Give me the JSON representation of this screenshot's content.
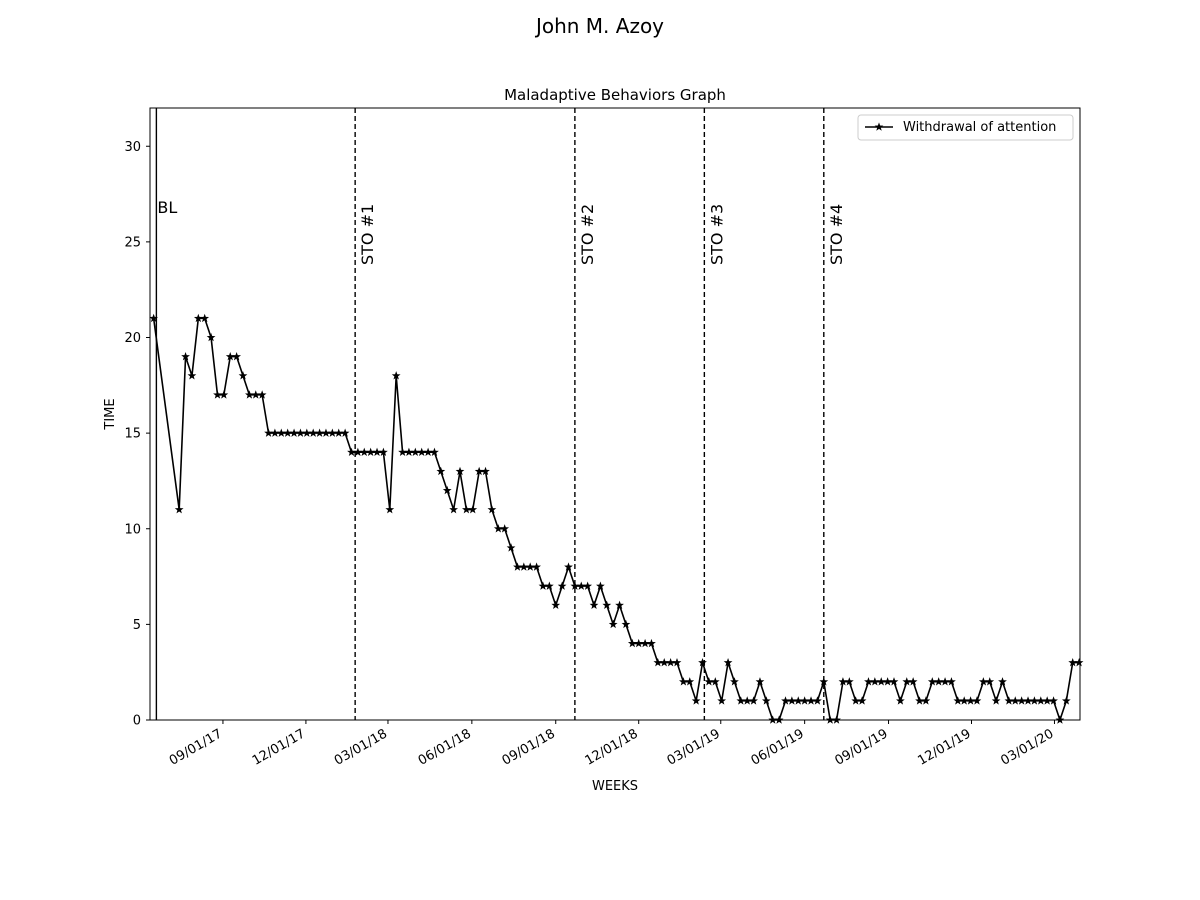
{
  "suptitle": "John M.  Azoy",
  "chart_data": {
    "type": "line",
    "title": "Maladaptive Behaviors Graph",
    "xlabel": "WEEKS",
    "ylabel": "TIME",
    "ylim": [
      0,
      32
    ],
    "xlim": [
      "2017-06-13",
      "2020-03-29"
    ],
    "yticks": [
      0,
      5,
      10,
      15,
      20,
      25,
      30
    ],
    "xticks": [
      {
        "date": "2017-09-01",
        "label": "09/01/17"
      },
      {
        "date": "2017-12-01",
        "label": "12/01/17"
      },
      {
        "date": "2018-03-01",
        "label": "03/01/18"
      },
      {
        "date": "2018-06-01",
        "label": "06/01/18"
      },
      {
        "date": "2018-09-01",
        "label": "09/01/18"
      },
      {
        "date": "2018-12-01",
        "label": "12/01/18"
      },
      {
        "date": "2019-03-01",
        "label": "03/01/19"
      },
      {
        "date": "2019-06-01",
        "label": "06/01/19"
      },
      {
        "date": "2019-09-01",
        "label": "09/01/19"
      },
      {
        "date": "2019-12-01",
        "label": "12/01/19"
      },
      {
        "date": "2020-03-01",
        "label": "03/01/20"
      }
    ],
    "grid": false,
    "legend_position": "top-right",
    "series": [
      {
        "name": "Withdrawal of attention",
        "color": "#000000",
        "marker": "star",
        "points": [
          [
            "2017-06-17",
            21
          ],
          [
            "2017-07-15",
            11
          ],
          [
            "2017-07-22",
            19
          ],
          [
            "2017-07-29",
            18
          ],
          [
            "2017-08-05",
            21
          ],
          [
            "2017-08-12",
            21
          ],
          [
            "2017-08-19",
            20
          ],
          [
            "2017-08-26",
            17
          ],
          [
            "2017-09-02",
            17
          ],
          [
            "2017-09-09",
            19
          ],
          [
            "2017-09-16",
            19
          ],
          [
            "2017-09-23",
            18
          ],
          [
            "2017-09-30",
            17
          ],
          [
            "2017-10-07",
            17
          ],
          [
            "2017-10-14",
            17
          ],
          [
            "2017-10-21",
            15
          ],
          [
            "2017-10-28",
            15
          ],
          [
            "2017-11-04",
            15
          ],
          [
            "2017-11-11",
            15
          ],
          [
            "2017-11-18",
            15
          ],
          [
            "2017-11-25",
            15
          ],
          [
            "2017-12-02",
            15
          ],
          [
            "2017-12-09",
            15
          ],
          [
            "2017-12-16",
            15
          ],
          [
            "2017-12-23",
            15
          ],
          [
            "2017-12-30",
            15
          ],
          [
            "2018-01-06",
            15
          ],
          [
            "2018-01-13",
            15
          ],
          [
            "2018-01-20",
            14
          ],
          [
            "2018-01-27",
            14
          ],
          [
            "2018-02-03",
            14
          ],
          [
            "2018-02-10",
            14
          ],
          [
            "2018-02-17",
            14
          ],
          [
            "2018-02-24",
            14
          ],
          [
            "2018-03-03",
            11
          ],
          [
            "2018-03-10",
            18
          ],
          [
            "2018-03-17",
            14
          ],
          [
            "2018-03-24",
            14
          ],
          [
            "2018-03-31",
            14
          ],
          [
            "2018-04-07",
            14
          ],
          [
            "2018-04-14",
            14
          ],
          [
            "2018-04-21",
            14
          ],
          [
            "2018-04-28",
            13
          ],
          [
            "2018-05-05",
            12
          ],
          [
            "2018-05-12",
            11
          ],
          [
            "2018-05-19",
            13
          ],
          [
            "2018-05-26",
            11
          ],
          [
            "2018-06-02",
            11
          ],
          [
            "2018-06-09",
            13
          ],
          [
            "2018-06-16",
            13
          ],
          [
            "2018-06-23",
            11
          ],
          [
            "2018-06-30",
            10
          ],
          [
            "2018-07-07",
            10
          ],
          [
            "2018-07-14",
            9
          ],
          [
            "2018-07-21",
            8
          ],
          [
            "2018-07-28",
            8
          ],
          [
            "2018-08-04",
            8
          ],
          [
            "2018-08-11",
            8
          ],
          [
            "2018-08-18",
            7
          ],
          [
            "2018-08-25",
            7
          ],
          [
            "2018-09-01",
            6
          ],
          [
            "2018-09-08",
            7
          ],
          [
            "2018-09-15",
            8
          ],
          [
            "2018-09-22",
            7
          ],
          [
            "2018-09-29",
            7
          ],
          [
            "2018-10-06",
            7
          ],
          [
            "2018-10-13",
            6
          ],
          [
            "2018-10-20",
            7
          ],
          [
            "2018-10-27",
            6
          ],
          [
            "2018-11-03",
            5
          ],
          [
            "2018-11-10",
            6
          ],
          [
            "2018-11-17",
            5
          ],
          [
            "2018-11-24",
            4
          ],
          [
            "2018-12-01",
            4
          ],
          [
            "2018-12-08",
            4
          ],
          [
            "2018-12-15",
            4
          ],
          [
            "2018-12-22",
            3
          ],
          [
            "2018-12-29",
            3
          ],
          [
            "2019-01-05",
            3
          ],
          [
            "2019-01-12",
            3
          ],
          [
            "2019-01-19",
            2
          ],
          [
            "2019-01-26",
            2
          ],
          [
            "2019-02-02",
            1
          ],
          [
            "2019-02-09",
            3
          ],
          [
            "2019-02-16",
            2
          ],
          [
            "2019-02-23",
            2
          ],
          [
            "2019-03-02",
            1
          ],
          [
            "2019-03-09",
            3
          ],
          [
            "2019-03-16",
            2
          ],
          [
            "2019-03-23",
            1
          ],
          [
            "2019-03-30",
            1
          ],
          [
            "2019-04-06",
            1
          ],
          [
            "2019-04-13",
            2
          ],
          [
            "2019-04-20",
            1
          ],
          [
            "2019-04-27",
            0
          ],
          [
            "2019-05-04",
            0
          ],
          [
            "2019-05-11",
            1
          ],
          [
            "2019-05-18",
            1
          ],
          [
            "2019-05-25",
            1
          ],
          [
            "2019-06-01",
            1
          ],
          [
            "2019-06-08",
            1
          ],
          [
            "2019-06-15",
            1
          ],
          [
            "2019-06-22",
            2
          ],
          [
            "2019-06-29",
            0
          ],
          [
            "2019-07-06",
            0
          ],
          [
            "2019-07-13",
            2
          ],
          [
            "2019-07-20",
            2
          ],
          [
            "2019-07-27",
            1
          ],
          [
            "2019-08-03",
            1
          ],
          [
            "2019-08-10",
            2
          ],
          [
            "2019-08-17",
            2
          ],
          [
            "2019-08-24",
            2
          ],
          [
            "2019-08-31",
            2
          ],
          [
            "2019-09-07",
            2
          ],
          [
            "2019-09-14",
            1
          ],
          [
            "2019-09-21",
            2
          ],
          [
            "2019-09-28",
            2
          ],
          [
            "2019-10-05",
            1
          ],
          [
            "2019-10-12",
            1
          ],
          [
            "2019-10-19",
            2
          ],
          [
            "2019-10-26",
            2
          ],
          [
            "2019-11-02",
            2
          ],
          [
            "2019-11-09",
            2
          ],
          [
            "2019-11-16",
            1
          ],
          [
            "2019-11-23",
            1
          ],
          [
            "2019-11-30",
            1
          ],
          [
            "2019-12-07",
            1
          ],
          [
            "2019-12-14",
            2
          ],
          [
            "2019-12-21",
            2
          ],
          [
            "2019-12-28",
            1
          ],
          [
            "2020-01-04",
            2
          ],
          [
            "2020-01-11",
            1
          ],
          [
            "2020-01-18",
            1
          ],
          [
            "2020-01-25",
            1
          ],
          [
            "2020-02-01",
            1
          ],
          [
            "2020-02-08",
            1
          ],
          [
            "2020-02-15",
            1
          ],
          [
            "2020-02-22",
            1
          ],
          [
            "2020-02-29",
            1
          ],
          [
            "2020-03-07",
            0
          ],
          [
            "2020-03-14",
            1
          ],
          [
            "2020-03-21",
            3
          ],
          [
            "2020-03-28",
            3
          ]
        ]
      }
    ],
    "phase_lines": [
      {
        "date": "2017-06-20",
        "label": "BL",
        "style": "solid",
        "label_orientation": "horizontal"
      },
      {
        "date": "2018-01-24",
        "label": "STO #1",
        "style": "dashed",
        "label_orientation": "vertical"
      },
      {
        "date": "2018-09-22",
        "label": "STO #2",
        "style": "dashed",
        "label_orientation": "vertical"
      },
      {
        "date": "2019-02-11",
        "label": "STO #3",
        "style": "dashed",
        "label_orientation": "vertical"
      },
      {
        "date": "2019-06-22",
        "label": "STO #4",
        "style": "dashed",
        "label_orientation": "vertical"
      }
    ]
  }
}
